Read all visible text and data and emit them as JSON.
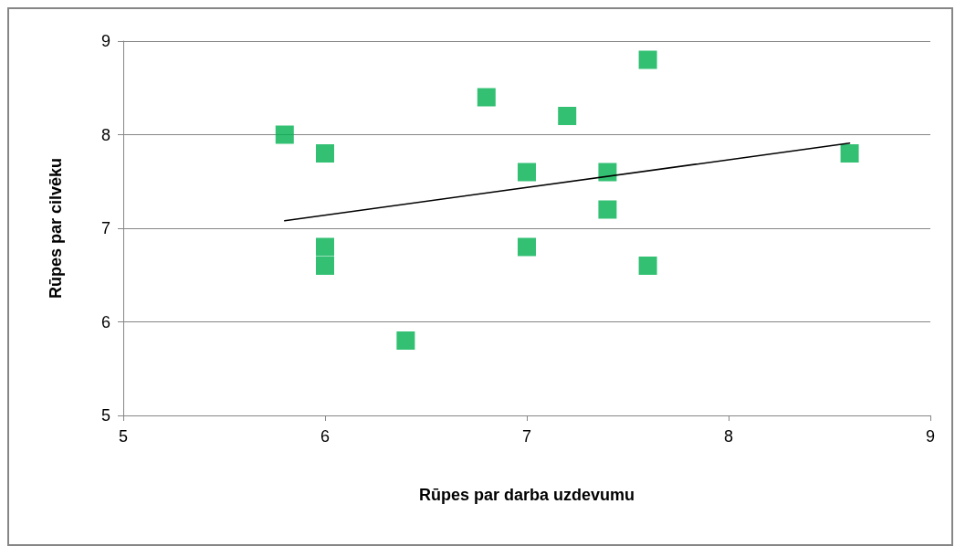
{
  "chart_data": {
    "type": "scatter",
    "xlabel": "Rūpes par darba uzdevumu",
    "ylabel": "Rūpes par cilvēku",
    "xlim": [
      5,
      9
    ],
    "xticks": [
      5,
      6,
      7,
      8,
      9
    ],
    "ylim": [
      5,
      9
    ],
    "yticks": [
      5,
      6,
      7,
      8,
      9
    ],
    "grid": "y",
    "marker": "square",
    "series": [
      {
        "color": "#00b050",
        "x": [
          5.8,
          6.0,
          6.0,
          6.0,
          6.4,
          6.8,
          7.0,
          7.0,
          7.2,
          7.4,
          7.4,
          7.6,
          7.6,
          8.6
        ],
        "values": [
          8.0,
          7.8,
          6.8,
          6.6,
          5.8,
          8.4,
          7.6,
          6.8,
          8.2,
          7.6,
          7.2,
          8.8,
          6.6,
          7.8
        ]
      },
      {
        "type": "line",
        "color": "#000000",
        "marker": "none",
        "line_style": "solid",
        "x": [
          5.8,
          8.6
        ],
        "values": [
          7.08,
          7.91
        ]
      }
    ]
  }
}
